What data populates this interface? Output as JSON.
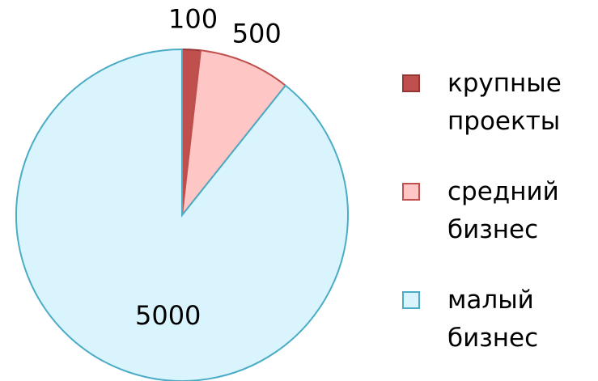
{
  "chart_data": {
    "type": "pie",
    "categories": [
      "крупные проекты",
      "средний бизнес",
      "малый бизнес"
    ],
    "values": [
      100,
      500,
      5000
    ],
    "colors": [
      "#c0504d",
      "#ffc6c6",
      "#daf4fe"
    ],
    "edge_colors": [
      "#943634",
      "#c0504d",
      "#4bacc6"
    ],
    "legend": "right"
  }
}
